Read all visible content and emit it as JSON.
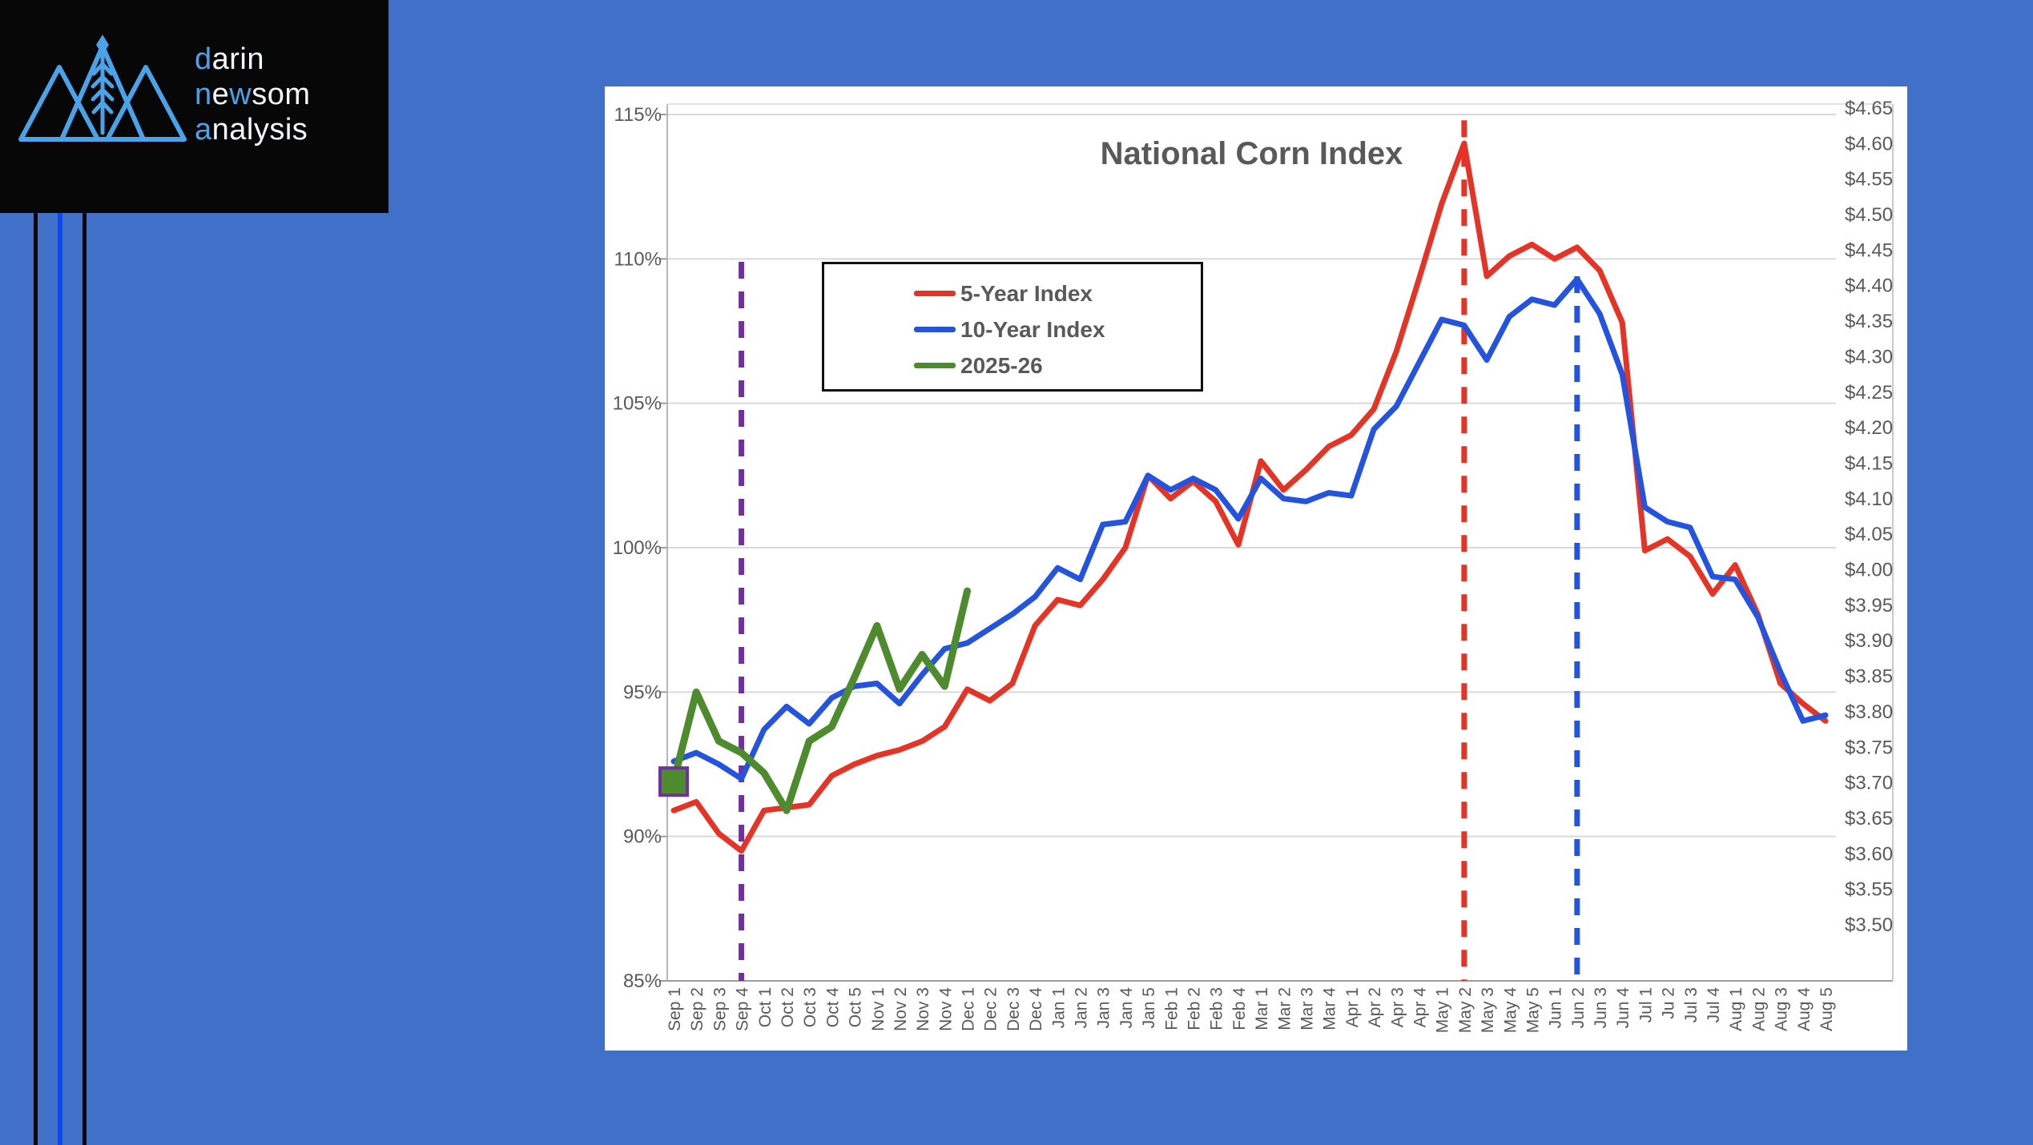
{
  "slide": {
    "background_color": "#4170c9",
    "stripe_colors": {
      "black": "#060606",
      "bright_blue": "#0d47ee"
    }
  },
  "logo": {
    "line1": [
      {
        "t": "d",
        "a": 1
      },
      {
        "t": "arin",
        "a": 0
      }
    ],
    "line2": [
      {
        "t": "n",
        "a": 1
      },
      {
        "t": "e",
        "a": 0
      },
      {
        "t": "w",
        "a": 1
      },
      {
        "t": "som",
        "a": 0
      }
    ],
    "line3": [
      {
        "t": "a",
        "a": 1
      },
      {
        "t": "nalysis",
        "a": 0
      }
    ],
    "accent_color": "#4aa3e8",
    "icon": "mountains-wheat"
  },
  "chart_data": {
    "type": "line",
    "title": "National Corn Index",
    "grid": true,
    "legend_position": "upper-left-inside",
    "x_labels": [
      "Sep 1",
      "Sep 2",
      "Sep 3",
      "Sep 4",
      "Oct 1",
      "Oct 2",
      "Oct 3",
      "Oct 4",
      "Oct 5",
      "Nov 1",
      "Nov 2",
      "Nov 3",
      "Nov 4",
      "Dec 1",
      "Dec 2",
      "Dec 3",
      "Dec 4",
      "Jan 1",
      "Jan 2",
      "Jan 3",
      "Jan 4",
      "Jan 5",
      "Feb 1",
      "Feb 2",
      "Feb 3",
      "Feb 4",
      "Mar 1",
      "Mar 2",
      "Mar 3",
      "Mar 4",
      "Apr 1",
      "Apr 2",
      "Apr 3",
      "Apr 4",
      "May 1",
      "May 2",
      "May 3",
      "May 4",
      "May 5",
      "Jun 1",
      "Jun 2",
      "Jun 3",
      "Jun 4",
      "Jul 1",
      "Ju 2",
      "Jul 3",
      "Jul 4",
      "Aug 1",
      "Aug 2",
      "Aug 3",
      "Aug 4",
      "Aug 5"
    ],
    "left_axis": {
      "unit": "percent",
      "min": 85,
      "max": 115,
      "step": 5,
      "labels": [
        "115%",
        "110%",
        "105%",
        "100%",
        "95%",
        "90%",
        "85%"
      ]
    },
    "right_axis": {
      "unit": "dollars",
      "labels": [
        "$4.65",
        "$4.60",
        "$4.55",
        "$4.50",
        "$4.45",
        "$4.40",
        "$4.35",
        "$4.30",
        "$4.25",
        "$4.20",
        "$4.15",
        "$4.10",
        "$4.05",
        "$4.00",
        "$3.95",
        "$3.90",
        "$3.85",
        "$3.80",
        "$3.75",
        "$3.70",
        "$3.65",
        "$3.60",
        "$3.55",
        "$3.50"
      ]
    },
    "legend": [
      {
        "label": "5-Year Index",
        "color": "#e53425"
      },
      {
        "label": "10-Year Index",
        "color": "#2453df"
      },
      {
        "label": "2025-26",
        "color": "#4e8b2e"
      }
    ],
    "series": [
      {
        "name": "5-Year Index",
        "color": "#e53425",
        "width": 7,
        "values": [
          90.9,
          91.2,
          90.1,
          89.5,
          90.9,
          91.0,
          91.1,
          92.1,
          92.5,
          92.8,
          93.0,
          93.3,
          93.8,
          95.1,
          94.7,
          95.3,
          97.3,
          98.2,
          98.0,
          98.9,
          100.0,
          102.5,
          101.7,
          102.3,
          101.6,
          100.1,
          103.0,
          102.0,
          102.7,
          103.5,
          103.9,
          104.8,
          106.8,
          109.3,
          111.9,
          114.0,
          109.4,
          110.1,
          110.5,
          110.0,
          110.4,
          109.6,
          107.8,
          99.9,
          100.3,
          99.7,
          98.4,
          99.4,
          97.7,
          95.3,
          94.6,
          94.0
        ]
      },
      {
        "name": "10-Year Index",
        "color": "#2453df",
        "width": 7,
        "values": [
          92.6,
          92.9,
          92.5,
          92.0,
          93.7,
          94.5,
          93.9,
          94.8,
          95.2,
          95.3,
          94.6,
          95.6,
          96.5,
          96.7,
          97.2,
          97.7,
          98.3,
          99.3,
          98.9,
          100.8,
          100.9,
          102.5,
          102.0,
          102.4,
          102.0,
          101.0,
          102.4,
          101.7,
          101.6,
          101.9,
          101.8,
          104.1,
          104.9,
          106.4,
          107.9,
          107.7,
          106.5,
          108.0,
          108.6,
          108.4,
          109.3,
          108.1,
          106.0,
          101.4,
          100.9,
          100.7,
          99.0,
          98.9,
          97.6,
          95.7,
          94.0,
          94.2
        ]
      },
      {
        "name": "2025-26",
        "color": "#4e8b2e",
        "width": 9,
        "values": [
          91.9,
          95.0,
          93.3,
          92.9,
          92.2,
          90.9,
          93.3,
          93.8,
          95.5,
          97.3,
          95.1,
          96.3,
          95.2,
          98.5
        ],
        "start_marker": {
          "shape": "square",
          "size": 34,
          "fill": "#4e8b2e",
          "stroke": "#7030a0"
        }
      }
    ],
    "vlines": [
      {
        "at": "Sep 4",
        "index": 3,
        "color": "#7030a0",
        "top_pct": 109.9
      },
      {
        "at": "May 2",
        "index": 35,
        "color": "#e53425",
        "top_pct": 114.8
      },
      {
        "at": "Jun 2",
        "index": 40,
        "color": "#2453df",
        "top_pct": 109.4
      }
    ]
  }
}
